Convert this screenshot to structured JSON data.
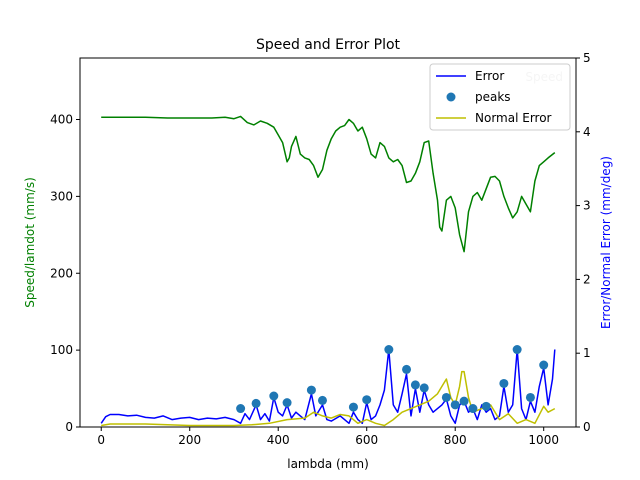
{
  "chart_data": {
    "type": "line",
    "title": "Speed and Error Plot",
    "xlabel": "lambda (mm)",
    "ylabel_left": "Speed/lamdot (mm/s)",
    "ylabel_right": "Error/Normal Error (mm/deg)",
    "xlim": [
      -48,
      1073
    ],
    "ylim_left": [
      0,
      480
    ],
    "ylim_right": [
      0,
      5
    ],
    "xticks": [
      0,
      200,
      400,
      600,
      800,
      1000
    ],
    "xtick_labels": [
      "0",
      "200",
      "400",
      "600",
      "800",
      "1000"
    ],
    "yticks_left": [
      0,
      100,
      200,
      300,
      400
    ],
    "ytick_labels_left": [
      "0",
      "100",
      "200",
      "300",
      "400"
    ],
    "yticks_right": [
      0,
      1,
      2,
      3,
      4,
      5
    ],
    "ytick_labels_right": [
      "0",
      "1",
      "2",
      "3",
      "4",
      "5"
    ],
    "grid": false,
    "legend_right": {
      "placement": "top-right",
      "entries": [
        "Error",
        "peaks",
        "Normal Error"
      ]
    },
    "legend_left": {
      "placement": "top-right",
      "entries": [
        "Speed"
      ]
    },
    "colors": {
      "speed": "#008000",
      "error": "#0000ff",
      "peaks": "#1f77b4",
      "normal_error": "#bfbf00",
      "axis": "#000000",
      "left_label": "#008000",
      "right_label": "#0000ff"
    },
    "series": [
      {
        "name": "Speed",
        "axis": "left",
        "color": "#008000",
        "x": [
          0,
          50,
          100,
          150,
          200,
          250,
          280,
          300,
          315,
          330,
          345,
          360,
          375,
          390,
          400,
          410,
          420,
          425,
          430,
          440,
          450,
          460,
          470,
          480,
          490,
          500,
          510,
          520,
          530,
          540,
          550,
          560,
          570,
          580,
          590,
          600,
          610,
          620,
          630,
          640,
          650,
          660,
          670,
          680,
          690,
          700,
          710,
          720,
          730,
          740,
          750,
          760,
          765,
          770,
          780,
          790,
          800,
          810,
          820,
          830,
          840,
          850,
          860,
          870,
          880,
          890,
          900,
          910,
          920,
          930,
          940,
          950,
          960,
          970,
          980,
          990,
          1000,
          1010,
          1025
        ],
        "y": [
          403,
          403,
          403,
          402,
          402,
          402,
          403,
          401,
          404,
          396,
          393,
          398,
          395,
          390,
          380,
          370,
          345,
          350,
          365,
          378,
          355,
          350,
          348,
          340,
          325,
          335,
          360,
          375,
          385,
          390,
          392,
          400,
          395,
          385,
          390,
          375,
          355,
          350,
          370,
          365,
          350,
          345,
          348,
          340,
          318,
          320,
          330,
          345,
          370,
          372,
          330,
          295,
          260,
          255,
          295,
          300,
          285,
          250,
          228,
          280,
          300,
          305,
          295,
          310,
          325,
          326,
          320,
          300,
          285,
          272,
          280,
          300,
          290,
          280,
          320,
          340,
          345,
          350,
          357
        ]
      },
      {
        "name": "Error",
        "axis": "right",
        "color": "#0000ff",
        "x": [
          0,
          10,
          20,
          40,
          60,
          80,
          100,
          120,
          140,
          160,
          180,
          200,
          220,
          240,
          260,
          280,
          300,
          315,
          325,
          335,
          350,
          360,
          370,
          380,
          390,
          400,
          410,
          420,
          430,
          440,
          450,
          460,
          475,
          485,
          500,
          510,
          520,
          540,
          560,
          570,
          580,
          590,
          600,
          610,
          620,
          630,
          640,
          650,
          660,
          670,
          680,
          690,
          700,
          710,
          720,
          730,
          740,
          750,
          760,
          770,
          780,
          790,
          800,
          810,
          820,
          830,
          840,
          850,
          860,
          870,
          880,
          890,
          900,
          910,
          920,
          930,
          940,
          950,
          960,
          970,
          980,
          990,
          1000,
          1010,
          1020,
          1025
        ],
        "y": [
          0.05,
          0.14,
          0.17,
          0.17,
          0.15,
          0.16,
          0.13,
          0.12,
          0.15,
          0.1,
          0.12,
          0.13,
          0.1,
          0.12,
          0.11,
          0.13,
          0.1,
          0.05,
          0.18,
          0.1,
          0.3,
          0.1,
          0.18,
          0.08,
          0.4,
          0.2,
          0.15,
          0.3,
          0.12,
          0.2,
          0.15,
          0.1,
          0.45,
          0.15,
          0.3,
          0.1,
          0.08,
          0.15,
          0.05,
          0.2,
          0.1,
          0.05,
          0.33,
          0.1,
          0.15,
          0.3,
          0.5,
          1.05,
          0.3,
          0.2,
          0.45,
          0.72,
          0.15,
          0.52,
          0.2,
          0.5,
          0.3,
          0.2,
          0.25,
          0.3,
          0.38,
          0.15,
          0.05,
          0.3,
          0.35,
          0.2,
          0.25,
          0.1,
          0.3,
          0.2,
          0.25,
          0.1,
          0.15,
          0.55,
          0.2,
          0.3,
          1.05,
          0.25,
          0.1,
          0.35,
          0.2,
          0.55,
          0.8,
          0.3,
          0.65,
          1.05
        ]
      },
      {
        "name": "Normal Error",
        "axis": "right",
        "color": "#bfbf00",
        "x": [
          0,
          20,
          60,
          100,
          150,
          200,
          250,
          300,
          340,
          380,
          420,
          460,
          480,
          500,
          520,
          540,
          560,
          580,
          600,
          620,
          640,
          660,
          680,
          700,
          720,
          740,
          760,
          770,
          780,
          790,
          800,
          810,
          815,
          820,
          830,
          840,
          860,
          880,
          900,
          920,
          940,
          960,
          980,
          1000,
          1010,
          1025
        ],
        "y": [
          0.02,
          0.04,
          0.04,
          0.04,
          0.03,
          0.02,
          0.02,
          0.02,
          0.03,
          0.05,
          0.1,
          0.12,
          0.2,
          0.15,
          0.12,
          0.17,
          0.15,
          0.05,
          0.1,
          0.05,
          0.02,
          0.1,
          0.2,
          0.25,
          0.3,
          0.35,
          0.45,
          0.55,
          0.65,
          0.4,
          0.3,
          0.55,
          0.75,
          0.75,
          0.4,
          0.2,
          0.25,
          0.3,
          0.1,
          0.18,
          0.05,
          0.1,
          0.05,
          0.28,
          0.2,
          0.25
        ]
      },
      {
        "name": "peaks",
        "axis": "right",
        "type": "scatter",
        "color": "#1f77b4",
        "x": [
          315,
          350,
          390,
          420,
          475,
          500,
          570,
          600,
          650,
          690,
          710,
          730,
          780,
          800,
          820,
          840,
          870,
          910,
          940,
          970,
          1000
        ],
        "y": [
          0.25,
          0.32,
          0.42,
          0.33,
          0.5,
          0.36,
          0.27,
          0.37,
          1.05,
          0.78,
          0.57,
          0.53,
          0.4,
          0.3,
          0.35,
          0.25,
          0.28,
          0.59,
          1.05,
          0.4,
          0.84
        ]
      }
    ]
  }
}
